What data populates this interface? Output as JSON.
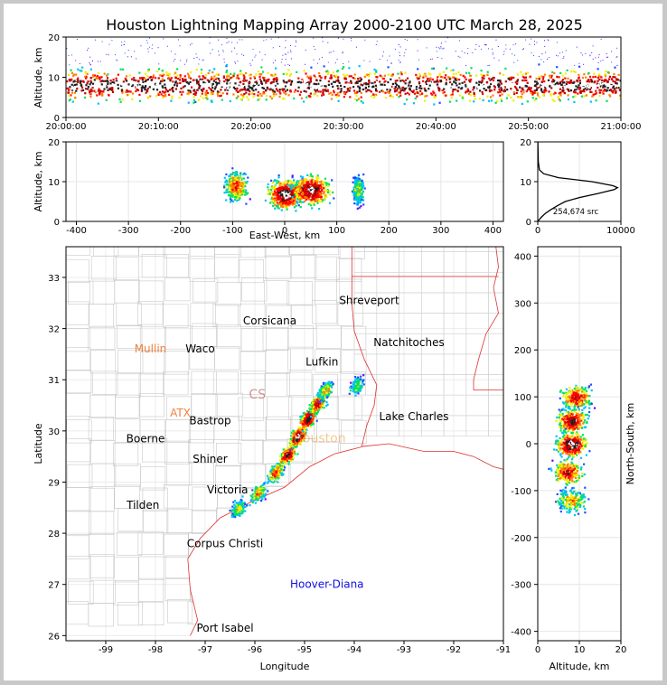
{
  "chart_data": {
    "type": "heatmap",
    "title": "Houston Lightning Mapping Array 2000-2100 UTC March 28, 2025",
    "panels": {
      "time_altitude": {
        "ylabel": "Altitude, km",
        "ylim": [
          0,
          20
        ],
        "yticks": [
          "0",
          "10",
          "20"
        ],
        "xticks": [
          "20:00:00",
          "20:10:00",
          "20:20:00",
          "20:30:00",
          "20:40:00",
          "20:50:00",
          "21:00:00"
        ],
        "band_bottom_km": 2,
        "band_top_km": 13,
        "core_km": 8
      },
      "ew_altitude": {
        "xlabel": "East-West, km",
        "ylabel": "Altitude, km",
        "xlim": [
          -420,
          420
        ],
        "ylim": [
          0,
          20
        ],
        "xticks": [
          -400,
          -300,
          -200,
          -100,
          0,
          100,
          200,
          300,
          400
        ],
        "yticks": [
          0,
          10,
          20
        ],
        "clusters": [
          {
            "x_km": -95,
            "alt_km": 9,
            "spread_x_km": 30,
            "intensity": 0.7
          },
          {
            "x_km": 0,
            "alt_km": 7,
            "spread_x_km": 45,
            "intensity": 1.0
          },
          {
            "x_km": 50,
            "alt_km": 8,
            "spread_x_km": 50,
            "intensity": 0.95
          },
          {
            "x_km": 140,
            "alt_km": 8,
            "spread_x_km": 15,
            "intensity": 0.5
          }
        ]
      },
      "altitude_histogram": {
        "annotation": "254,674 src",
        "xlim": [
          0,
          10000
        ],
        "ylim": [
          0,
          20
        ],
        "xticks": [
          "0",
          "10000"
        ],
        "yticks": [
          "0",
          "10",
          "20"
        ],
        "profile": [
          {
            "alt_km": 0,
            "count": 0
          },
          {
            "alt_km": 1,
            "count": 400
          },
          {
            "alt_km": 2,
            "count": 900
          },
          {
            "alt_km": 3,
            "count": 1600
          },
          {
            "alt_km": 4,
            "count": 2400
          },
          {
            "alt_km": 5,
            "count": 3300
          },
          {
            "alt_km": 6,
            "count": 5000
          },
          {
            "alt_km": 7,
            "count": 7200
          },
          {
            "alt_km": 8,
            "count": 9200
          },
          {
            "alt_km": 8.5,
            "count": 9600
          },
          {
            "alt_km": 9,
            "count": 9000
          },
          {
            "alt_km": 10,
            "count": 6500
          },
          {
            "alt_km": 11,
            "count": 2500
          },
          {
            "alt_km": 12,
            "count": 700
          },
          {
            "alt_km": 13,
            "count": 200
          },
          {
            "alt_km": 15,
            "count": 60
          },
          {
            "alt_km": 20,
            "count": 10
          }
        ]
      },
      "plan_map": {
        "xlabel": "Longitude",
        "ylabel": "Latitude",
        "xlim": [
          -99.8,
          -91.0
        ],
        "ylim": [
          25.9,
          33.6
        ],
        "xticks": [
          -99,
          -98,
          -97,
          -96,
          -95,
          -94,
          -93,
          -92,
          -91
        ],
        "yticks": [
          26,
          27,
          28,
          29,
          30,
          31,
          32,
          33
        ],
        "cities": [
          {
            "name": "Shreveport",
            "lon": -93.7,
            "lat": 32.55,
            "color": "#000000"
          },
          {
            "name": "Corsicana",
            "lon": -95.7,
            "lat": 32.15,
            "color": "#000000"
          },
          {
            "name": "Natchitoches",
            "lon": -92.9,
            "lat": 31.73,
            "color": "#000000"
          },
          {
            "name": "Mullin",
            "lon": -98.1,
            "lat": 31.6,
            "color": "#f08040"
          },
          {
            "name": "Waco",
            "lon": -97.1,
            "lat": 31.6,
            "color": "#000000"
          },
          {
            "name": "Lufkin",
            "lon": -94.65,
            "lat": 31.35,
            "color": "#000000"
          },
          {
            "name": "ATX",
            "lon": -97.5,
            "lat": 30.35,
            "color": "#f08040"
          },
          {
            "name": "Bastrop",
            "lon": -96.9,
            "lat": 30.2,
            "color": "#000000"
          },
          {
            "name": "Lake Charles",
            "lon": -92.8,
            "lat": 30.28,
            "color": "#000000"
          },
          {
            "name": "Boerne",
            "lon": -98.2,
            "lat": 29.85,
            "color": "#000000"
          },
          {
            "name": "Shiner",
            "lon": -96.9,
            "lat": 29.45,
            "color": "#000000"
          },
          {
            "name": "Victoria",
            "lon": -96.55,
            "lat": 28.85,
            "color": "#000000"
          },
          {
            "name": "Tilden",
            "lon": -98.25,
            "lat": 28.55,
            "color": "#000000"
          },
          {
            "name": "Corpus Christi",
            "lon": -96.6,
            "lat": 27.8,
            "color": "#000000"
          },
          {
            "name": "Hoover-Diana",
            "lon": -94.55,
            "lat": 27.0,
            "color": "#1010e0"
          },
          {
            "name": "Port Isabel",
            "lon": -96.6,
            "lat": 26.15,
            "color": "#000000"
          }
        ],
        "faint_labels": [
          {
            "name": "CS",
            "lon": -95.95,
            "lat": 30.7,
            "color": "#b04040"
          },
          {
            "name": "Houston",
            "lon": -94.7,
            "lat": 29.85,
            "color": "#e8a040"
          }
        ],
        "activity_segments": [
          {
            "lon": -96.35,
            "lat": 28.5,
            "intensity": 0.5
          },
          {
            "lon": -95.95,
            "lat": 28.8,
            "intensity": 0.6
          },
          {
            "lon": -95.6,
            "lat": 29.2,
            "intensity": 0.7
          },
          {
            "lon": -95.35,
            "lat": 29.55,
            "intensity": 0.9
          },
          {
            "lon": -95.15,
            "lat": 29.9,
            "intensity": 1.0
          },
          {
            "lon": -94.95,
            "lat": 30.25,
            "intensity": 0.95
          },
          {
            "lon": -94.75,
            "lat": 30.55,
            "intensity": 0.8
          },
          {
            "lon": -94.6,
            "lat": 30.8,
            "intensity": 0.55
          },
          {
            "lon": -93.95,
            "lat": 30.9,
            "intensity": 0.45
          }
        ]
      },
      "ns_altitude": {
        "xlabel": "Altitude, km",
        "ylabel": "North-South, km",
        "xlim": [
          0,
          20
        ],
        "ylim": [
          -420,
          420
        ],
        "xticks": [
          0,
          10,
          20
        ],
        "yticks": [
          -400,
          -300,
          -200,
          -100,
          0,
          100,
          200,
          300,
          400
        ],
        "clusters": [
          {
            "ns_km": 100,
            "alt_km": 9,
            "intensity": 0.8
          },
          {
            "ns_km": 50,
            "alt_km": 8,
            "intensity": 0.9
          },
          {
            "ns_km": 0,
            "alt_km": 8,
            "intensity": 1.0
          },
          {
            "ns_km": -60,
            "alt_km": 7,
            "intensity": 0.8
          },
          {
            "ns_km": -120,
            "alt_km": 8,
            "intensity": 0.6
          }
        ]
      }
    }
  }
}
